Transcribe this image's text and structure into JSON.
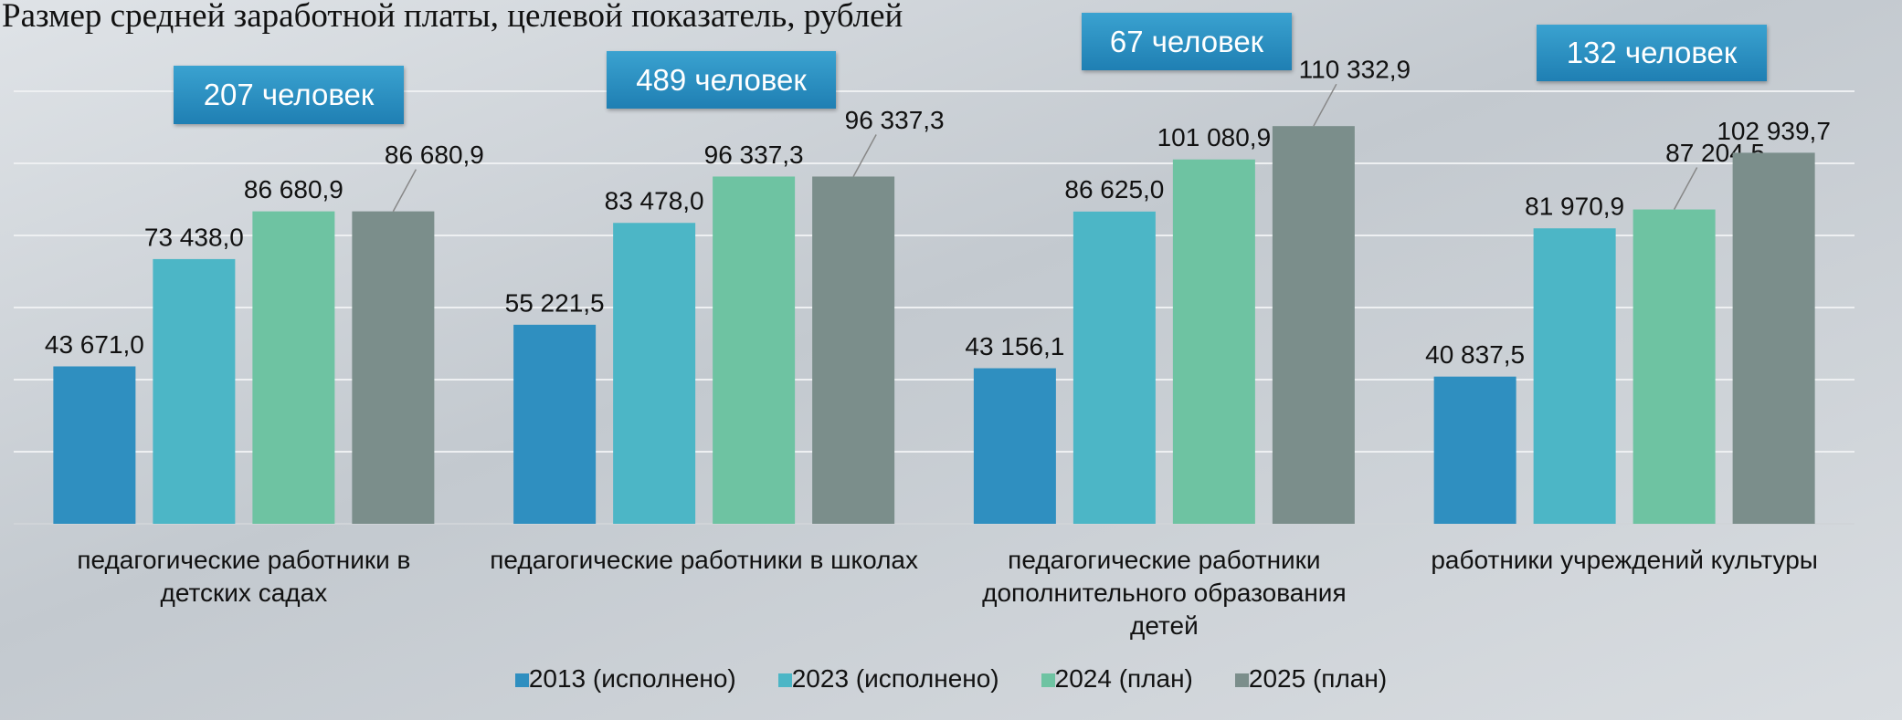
{
  "chart_data": {
    "type": "bar",
    "title": "Размер средней заработной платы, целевой показатель, рублей",
    "categories": [
      "педагогические работники в детских садах",
      "педагогические работники в школах",
      "педагогические работники дополнительного образования детей",
      "работники учреждений культуры"
    ],
    "series": [
      {
        "name": "2013 (исполнено)",
        "color": "#2f8fc0",
        "values": [
          43671.0,
          55221.5,
          43156.1,
          40837.5
        ],
        "value_labels": [
          "43 671,0",
          "55 221,5",
          "43 156,1",
          "40 837,5"
        ]
      },
      {
        "name": "2023 (исполнено)",
        "color": "#4cb6c6",
        "values": [
          73438.0,
          83478.0,
          86625.0,
          81970.9
        ],
        "value_labels": [
          "73 438,0",
          "83 478,0",
          "86 625,0",
          "81 970,9"
        ]
      },
      {
        "name": "2024 (план)",
        "color": "#6ec3a2",
        "values": [
          86680.9,
          96337.3,
          101080.9,
          87204.5
        ],
        "value_labels": [
          "86 680,9",
          "96 337,3",
          "101 080,9",
          "87 204,5"
        ]
      },
      {
        "name": "2025 (план)",
        "color": "#7b8e8b",
        "values": [
          86680.9,
          96337.3,
          110332.9,
          102939.7
        ],
        "value_labels": [
          "86 680,9",
          "96 337,3",
          "110 332,9",
          "102 939,7"
        ]
      }
    ],
    "annotations": [
      "207 человек",
      "489 человек",
      "67 человек",
      "132 человек"
    ],
    "ylim": [
      0,
      120000
    ],
    "yticks": [
      0,
      20000,
      40000,
      60000,
      80000,
      100000,
      120000
    ],
    "grid": true,
    "legend": "bottom"
  }
}
